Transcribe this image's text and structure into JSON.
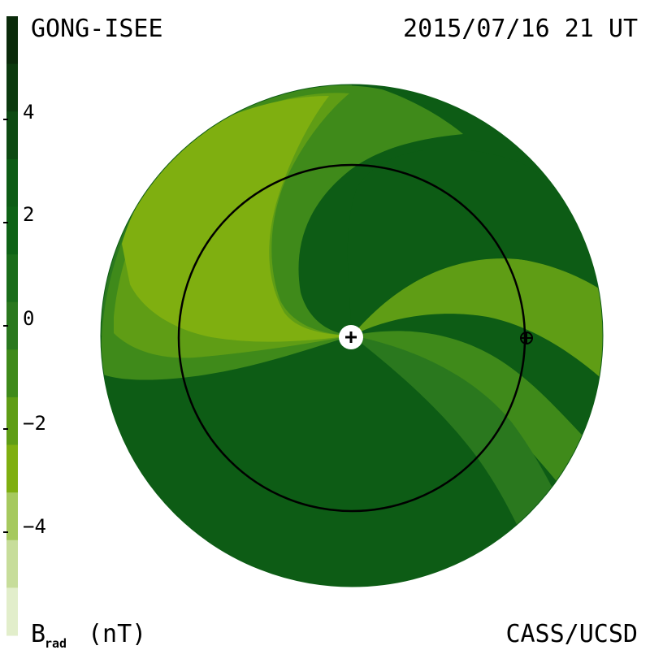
{
  "header": {
    "source": "GONG-ISEE",
    "timestamp": "2015/07/16 21 UT"
  },
  "footer": {
    "credit": "CASS/UCSD"
  },
  "colorbar": {
    "label_main": "B",
    "label_sub": "rad",
    "label_unit": "(nT)",
    "ticks": [
      "4",
      "2",
      "0",
      "−2",
      "−4"
    ],
    "tick_values": [
      4,
      2,
      0,
      -2,
      -4
    ],
    "range": [
      -6,
      6
    ],
    "colors_top_to_bottom": [
      "#0a2a0a",
      "#0c3a0e",
      "#0d4a12",
      "#0d5c15",
      "#0e6316",
      "#1a6d1a",
      "#2a781e",
      "#3f8a1a",
      "#5f9d15",
      "#7faf10",
      "#a6c95e",
      "#c7dd9a",
      "#e2eecb"
    ]
  },
  "chart_data": {
    "type": "heatmap",
    "title": "GONG-ISEE",
    "subtitle": "2015/07/16 21 UT",
    "quantity": "B_rad (nT)",
    "color_scale_min": -6,
    "color_scale_max": 6,
    "projection": "ecliptic plane, polar view",
    "center_marker": "sun",
    "orbit_marker": "earth",
    "dominant_regions": [
      {
        "region": "outer background",
        "approx_value": 2
      },
      {
        "region": "upper-left spiral arm",
        "approx_value": -3
      },
      {
        "region": "lower-right spiral arm",
        "approx_value": -1
      }
    ]
  }
}
